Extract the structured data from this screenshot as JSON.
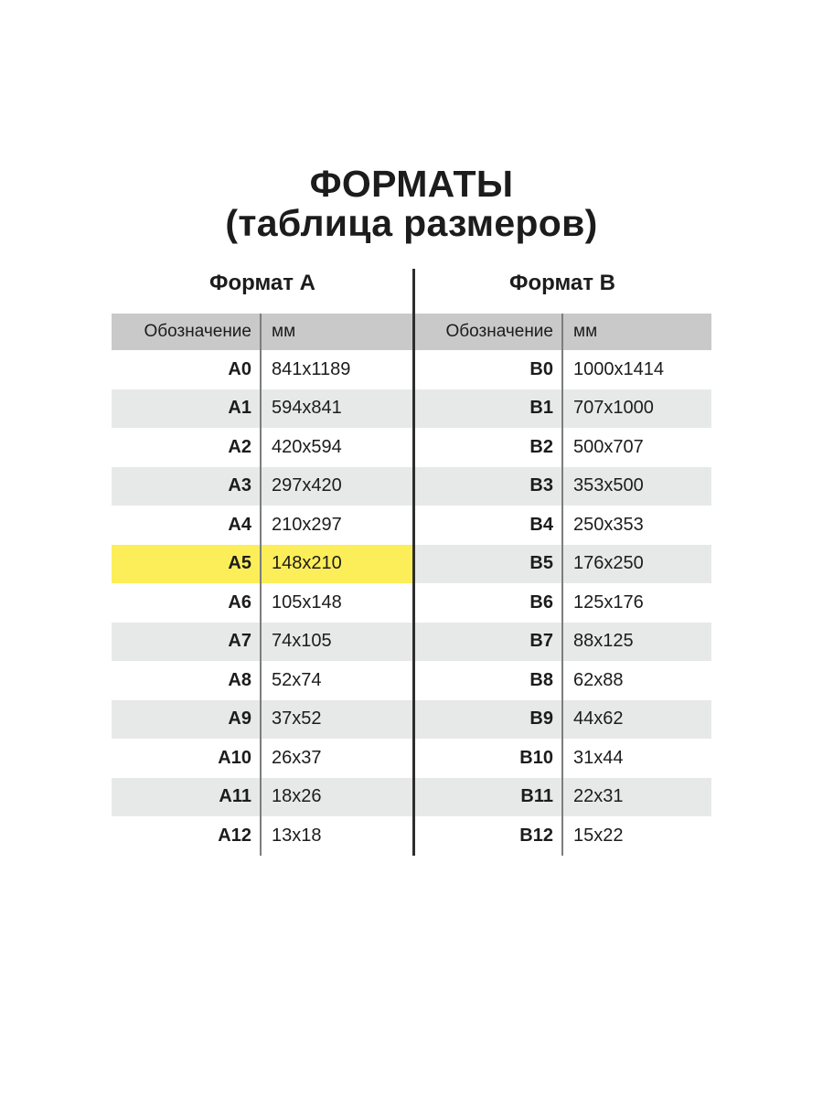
{
  "title": {
    "line1": "ФОРМАТЫ",
    "line2": "(таблица размеров)"
  },
  "sections": {
    "a": "Формат А",
    "b": "Формат В"
  },
  "columns": {
    "designation": "Обозначение",
    "mm": "мм"
  },
  "rows": [
    {
      "a": "A0",
      "a_mm": "841x1189",
      "b": "B0",
      "b_mm": "1000x1414",
      "highlight": false
    },
    {
      "a": "A1",
      "a_mm": "594x841",
      "b": "B1",
      "b_mm": "707x1000",
      "highlight": false
    },
    {
      "a": "A2",
      "a_mm": "420x594",
      "b": "B2",
      "b_mm": "500x707",
      "highlight": false
    },
    {
      "a": "A3",
      "a_mm": "297x420",
      "b": "B3",
      "b_mm": "353x500",
      "highlight": false
    },
    {
      "a": "A4",
      "a_mm": "210x297",
      "b": "B4",
      "b_mm": "250x353",
      "highlight": false
    },
    {
      "a": "A5",
      "a_mm": "148x210",
      "b": "B5",
      "b_mm": "176x250",
      "highlight": true
    },
    {
      "a": "A6",
      "a_mm": "105x148",
      "b": "B6",
      "b_mm": "125x176",
      "highlight": false
    },
    {
      "a": "A7",
      "a_mm": "74x105",
      "b": "B7",
      "b_mm": "88x125",
      "highlight": false
    },
    {
      "a": "A8",
      "a_mm": "52x74",
      "b": "B8",
      "b_mm": "62x88",
      "highlight": false
    },
    {
      "a": "A9",
      "a_mm": "37x52",
      "b": "B9",
      "b_mm": "44x62",
      "highlight": false
    },
    {
      "a": "A10",
      "a_mm": "26x37",
      "b": "B10",
      "b_mm": "31x44",
      "highlight": false
    },
    {
      "a": "A11",
      "a_mm": "18x26",
      "b": "B11",
      "b_mm": "22x31",
      "highlight": false
    },
    {
      "a": "A12",
      "a_mm": "13x18",
      "b": "B12",
      "b_mm": "15x22",
      "highlight": false
    }
  ],
  "colors": {
    "header_bg": "#c9c9c9",
    "row_alt_bg": "#e7e9e9",
    "highlight_bg": "#fcee58",
    "divider": "#2e2e2e",
    "separator": "#7d7d7d",
    "text": "#1c1c1c"
  }
}
